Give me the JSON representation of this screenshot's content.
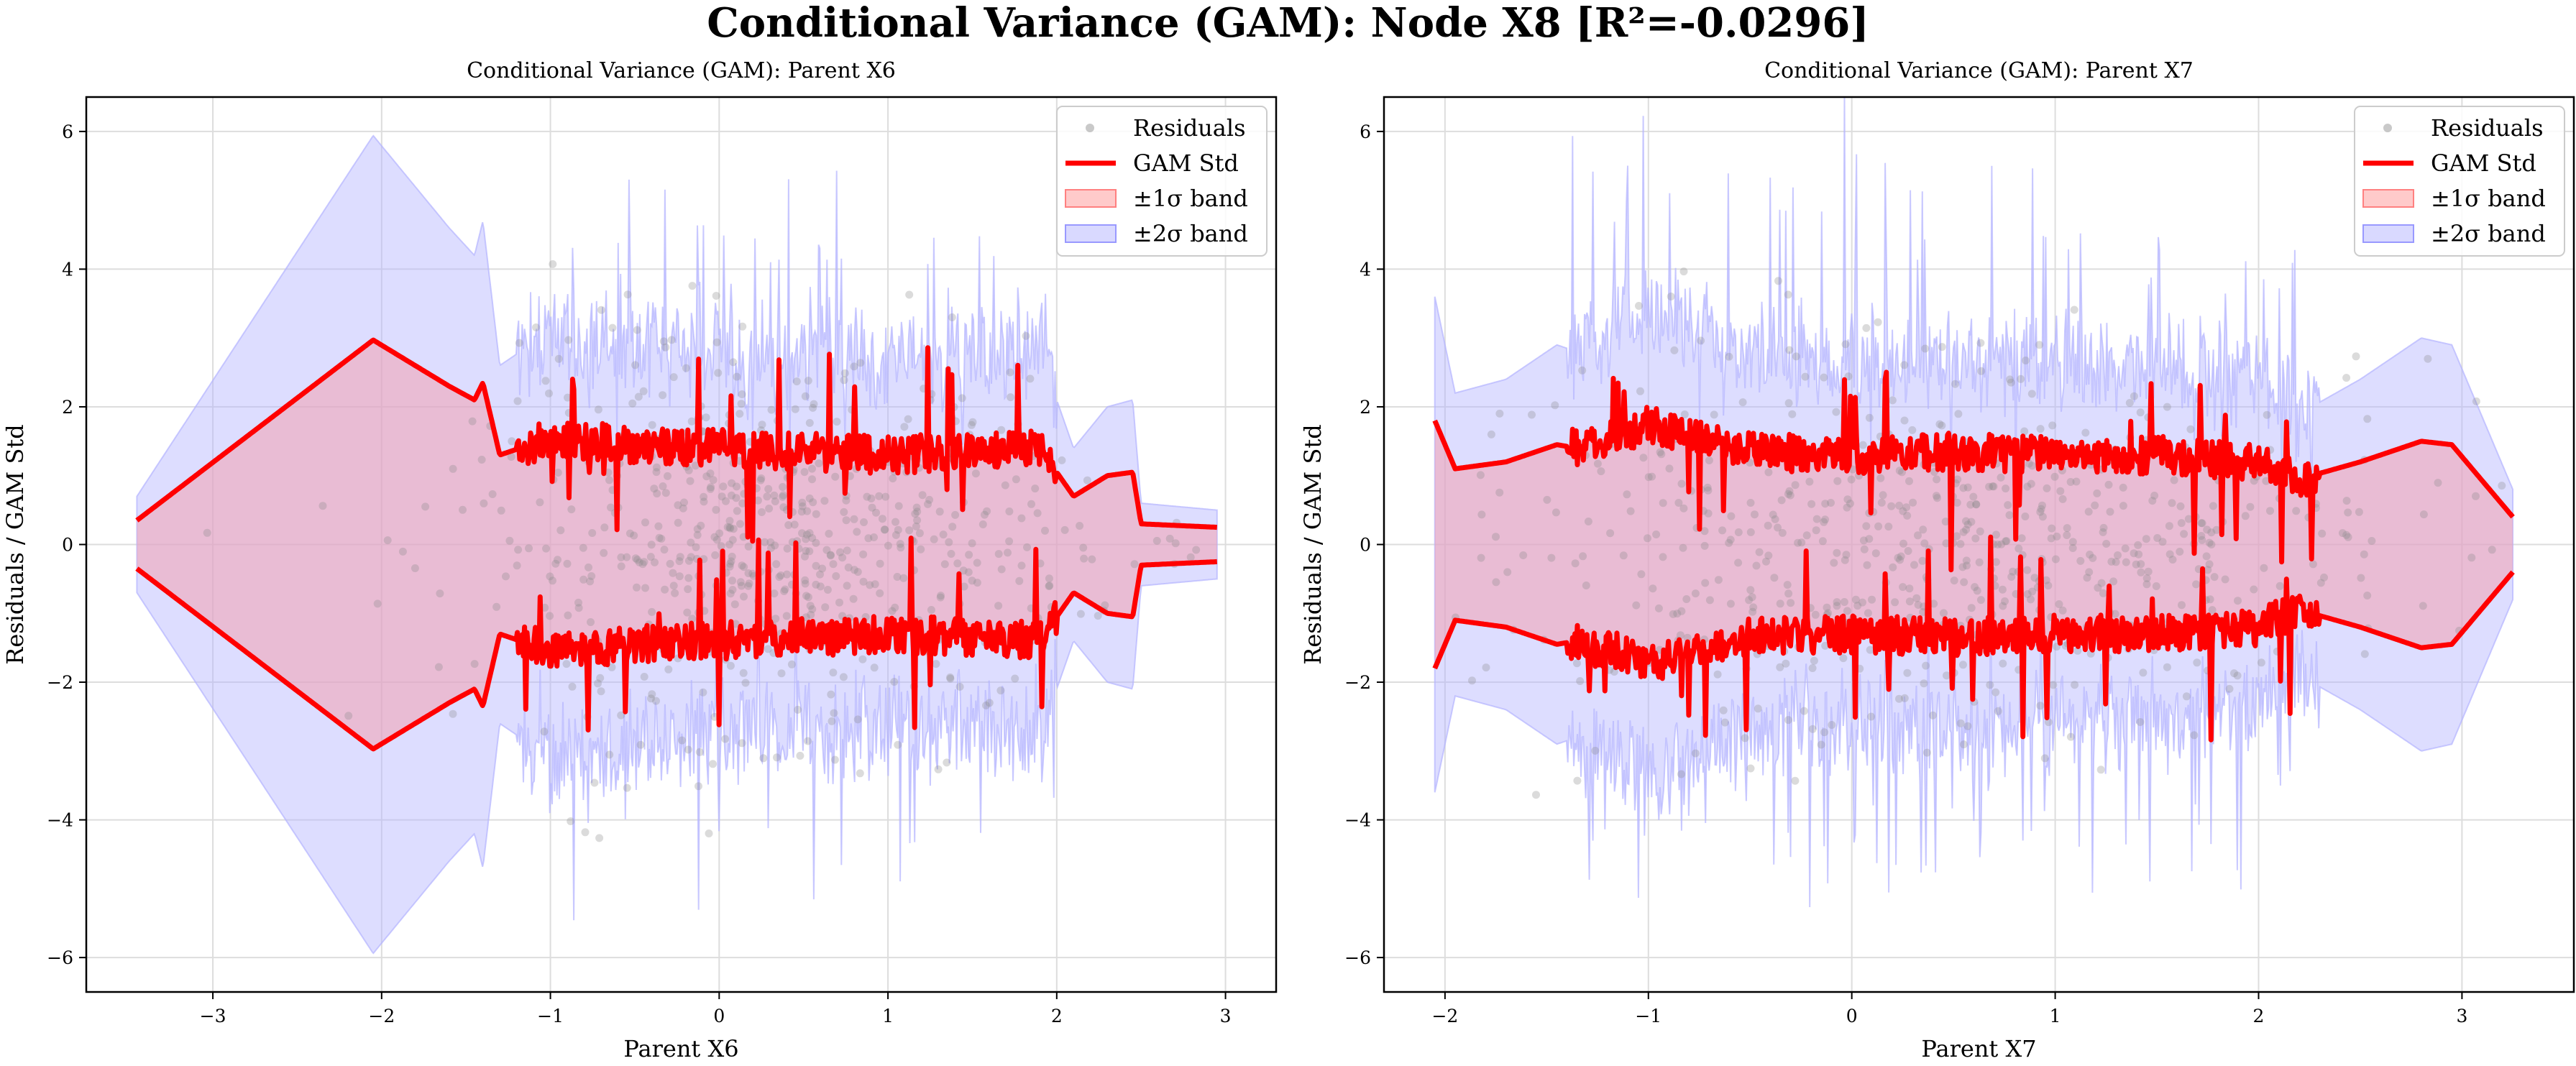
{
  "suptitle": "Conditional Variance (GAM): Node X8 [R²=-0.0296]",
  "colors": {
    "std_line": "#ff0000",
    "band1_fill": "#ffb3b3",
    "band2_fill": "#b3b3ff",
    "points": "#888888",
    "grid": "#dddddd"
  },
  "chart_data": [
    {
      "type": "line",
      "title": "Conditional Variance (GAM): Parent X6",
      "xlabel": "Parent X6",
      "ylabel": "Residuals / GAM Std",
      "xlim": [
        -3.75,
        3.3
      ],
      "ylim": [
        -6.5,
        6.5
      ],
      "xticks": [
        -3,
        -2,
        -1,
        0,
        1,
        2,
        3
      ],
      "yticks": [
        -6,
        -4,
        -2,
        0,
        2,
        4,
        6
      ],
      "grid": true,
      "legend": {
        "position": "top-right",
        "entries": [
          "Residuals",
          "GAM Std",
          "±1σ band",
          "±2σ band"
        ]
      },
      "residuals_x_range": [
        -3.45,
        2.95
      ],
      "std_curve": {
        "x": [
          -3.45,
          -2.05,
          -1.6,
          -1.45,
          -1.4,
          -1.3,
          -1.0,
          -0.5,
          0.0,
          0.5,
          1.0,
          1.5,
          1.9,
          2.1,
          2.3,
          2.45,
          2.5,
          2.95
        ],
        "std": [
          0.35,
          2.97,
          2.3,
          2.1,
          2.35,
          1.3,
          1.55,
          1.45,
          1.4,
          1.35,
          1.3,
          1.35,
          1.4,
          0.7,
          1.0,
          1.05,
          0.3,
          0.25
        ]
      }
    },
    {
      "type": "line",
      "title": "Conditional Variance (GAM): Parent X7",
      "xlabel": "Parent X7",
      "ylabel": "Residuals / GAM Std",
      "xlim": [
        -2.3,
        3.55
      ],
      "ylim": [
        -6.5,
        6.5
      ],
      "xticks": [
        -2,
        -1,
        0,
        1,
        2,
        3
      ],
      "yticks": [
        -6,
        -4,
        -2,
        0,
        2,
        4,
        6
      ],
      "grid": true,
      "legend": {
        "position": "top-right",
        "entries": [
          "Residuals",
          "GAM Std",
          "±1σ band",
          "±2σ band"
        ]
      },
      "residuals_x_range": [
        -2.05,
        3.2
      ],
      "std_curve": {
        "x": [
          -2.05,
          -1.95,
          -1.7,
          -1.45,
          -1.35,
          -1.3,
          -1.15,
          -1.0,
          -0.5,
          0.0,
          0.5,
          1.0,
          1.5,
          2.0,
          2.2,
          2.5,
          2.8,
          2.95,
          3.25
        ],
        "std": [
          1.8,
          1.1,
          1.2,
          1.45,
          1.4,
          1.5,
          1.55,
          1.75,
          1.35,
          1.3,
          1.35,
          1.3,
          1.3,
          1.2,
          0.95,
          1.2,
          1.5,
          1.45,
          0.4
        ]
      }
    }
  ]
}
